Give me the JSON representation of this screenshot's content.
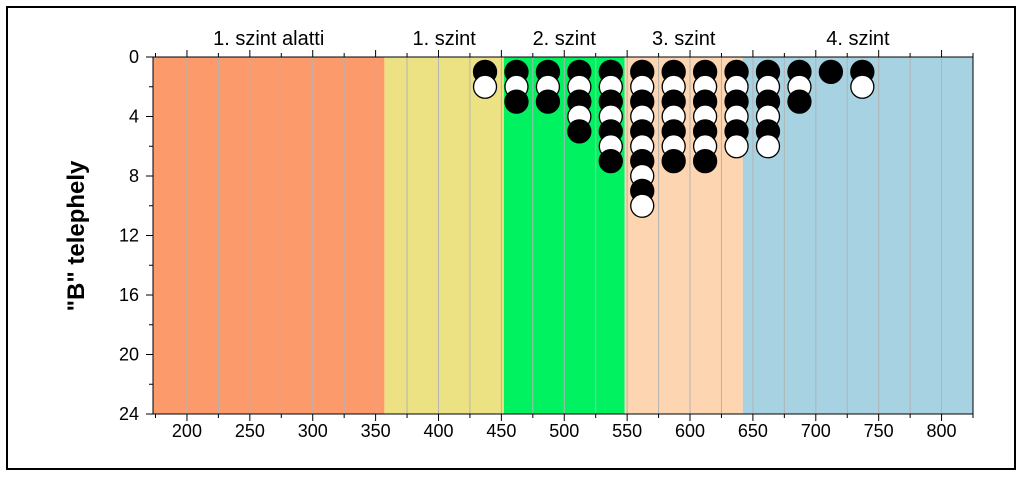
{
  "chart_data": {
    "type": "scatter",
    "ylabel": "\"B\" telephely",
    "xlim": [
      173,
      825
    ],
    "ylim": [
      0,
      24
    ],
    "y_inverted": true,
    "x_ticks": [
      200,
      250,
      300,
      350,
      400,
      450,
      500,
      550,
      600,
      650,
      700,
      750,
      800
    ],
    "y_ticks": [
      0,
      4,
      8,
      12,
      16,
      20,
      24
    ],
    "bands": [
      {
        "label": "1. szint alatti",
        "from": 173,
        "to": 357,
        "color": "#fd9a6c"
      },
      {
        "label": "1. szint",
        "from": 357,
        "to": 452,
        "color": "#ede283"
      },
      {
        "label": "2. szint",
        "from": 452,
        "to": 548,
        "color": "#00f260"
      },
      {
        "label": "3. szint",
        "from": 548,
        "to": 642,
        "color": "#fdd5b0"
      },
      {
        "label": "4. szint",
        "from": 642,
        "to": 825,
        "color": "#a7d2e2"
      }
    ],
    "columns": [
      {
        "x": 437,
        "dots": [
          "black",
          "white"
        ]
      },
      {
        "x": 462,
        "dots": [
          "black",
          "white",
          "black"
        ]
      },
      {
        "x": 487,
        "dots": [
          "black",
          "white",
          "black"
        ]
      },
      {
        "x": 512,
        "dots": [
          "black",
          "white",
          "black",
          "white",
          "black"
        ]
      },
      {
        "x": 537,
        "dots": [
          "black",
          "white",
          "black",
          "white",
          "black",
          "white",
          "black"
        ]
      },
      {
        "x": 562,
        "dots": [
          "black",
          "white",
          "black",
          "white",
          "black",
          "white",
          "black",
          "white",
          "black",
          "white"
        ]
      },
      {
        "x": 587,
        "dots": [
          "black",
          "white",
          "black",
          "white",
          "black",
          "white",
          "black"
        ]
      },
      {
        "x": 612,
        "dots": [
          "black",
          "white",
          "black",
          "white",
          "black",
          "white",
          "black"
        ]
      },
      {
        "x": 637,
        "dots": [
          "black",
          "white",
          "black",
          "white",
          "black",
          "white"
        ]
      },
      {
        "x": 662,
        "dots": [
          "black",
          "white",
          "black",
          "white",
          "black",
          "white"
        ]
      },
      {
        "x": 687,
        "dots": [
          "black",
          "white",
          "black"
        ]
      },
      {
        "x": 712,
        "dots": [
          "black"
        ]
      },
      {
        "x": 737,
        "dots": [
          "black",
          "white"
        ]
      }
    ],
    "grid": {
      "vertical": true,
      "horizontal": false,
      "color": "#b3b3b3"
    }
  }
}
